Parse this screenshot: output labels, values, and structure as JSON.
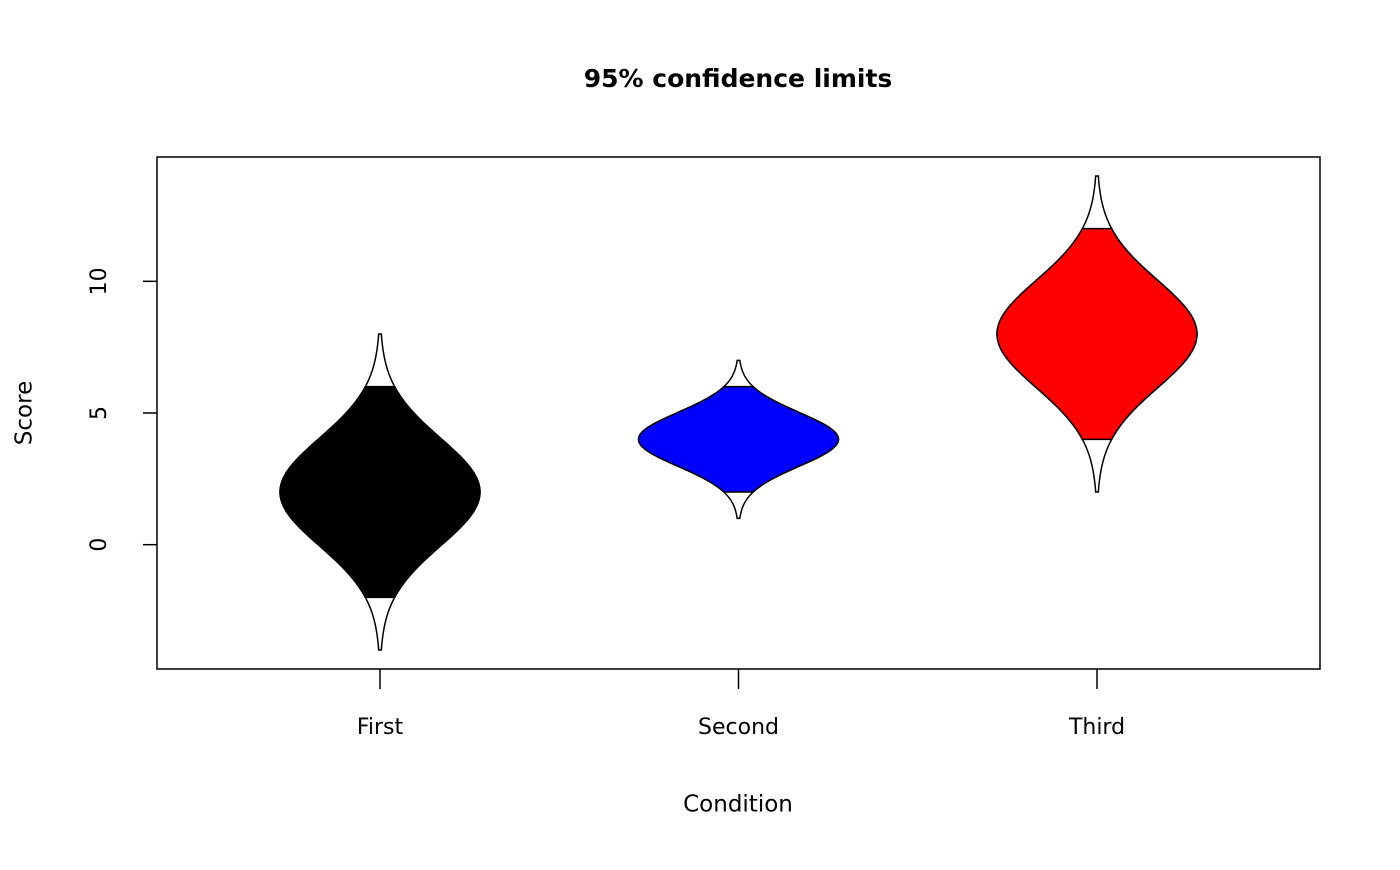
{
  "chart_data": {
    "type": "violin",
    "title": "95% confidence limits",
    "x_label": "Condition",
    "y_label": "Score",
    "categories": [
      "First",
      "Second",
      "Third"
    ],
    "series": [
      {
        "name": null,
        "means": [
          2,
          4,
          8
        ],
        "lower": [
          -2,
          2,
          4
        ],
        "upper": [
          6,
          6,
          12
        ],
        "min": [
          -4,
          1,
          2
        ],
        "max": [
          8,
          7,
          14
        ],
        "colors": [
          "#000000",
          "#0000ff",
          "#ff0000"
        ]
      }
    ],
    "ylim": [
      -4.72,
      14.72
    ],
    "yticks": [
      0,
      5,
      10
    ]
  }
}
